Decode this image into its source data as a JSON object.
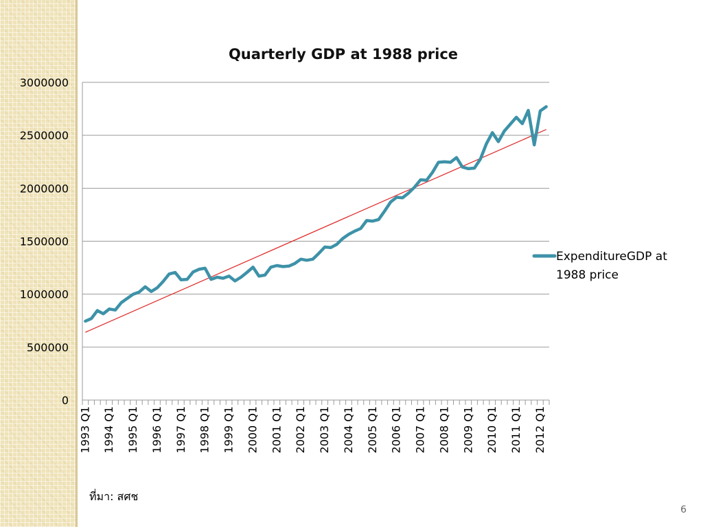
{
  "slide": {
    "source_note": "ที่มา: สศช",
    "page_number": "6"
  },
  "colors": {
    "series": "#3d92a8",
    "trend": "#e03030",
    "grid": "#9a9a9a",
    "strip": "#efe3b9"
  },
  "chart_data": {
    "type": "line",
    "title": "Quarterly  GDP at 1988 price",
    "xlabel": "",
    "ylabel": "",
    "ylim": [
      0,
      3000000
    ],
    "yticks": [
      0,
      500000,
      1000000,
      1500000,
      2000000,
      2500000,
      3000000
    ],
    "ytick_labels": [
      "0",
      "500000",
      "1000000",
      "1500000",
      "2000000",
      "2500000",
      "3000000"
    ],
    "xtick_labels": [
      "1993 Q1",
      "1994 Q1",
      "1995 Q1",
      "1996 Q1",
      "1997 Q1",
      "1998 Q1",
      "1999 Q1",
      "2000 Q1",
      "2001 Q1",
      "2002 Q1",
      "2003 Q1",
      "2004 Q1",
      "2005 Q1",
      "2006 Q1",
      "2007 Q1",
      "2008 Q1",
      "2009 Q1",
      "2010 Q1",
      "2011 Q1",
      "2012 Q1"
    ],
    "grid": true,
    "legend": "right",
    "series": [
      {
        "name": "ExpenditureGDP at 1988 price",
        "values": [
          745000,
          770000,
          845000,
          815000,
          860000,
          850000,
          920000,
          960000,
          1000000,
          1020000,
          1070000,
          1025000,
          1060000,
          1120000,
          1190000,
          1205000,
          1135000,
          1140000,
          1210000,
          1235000,
          1245000,
          1140000,
          1160000,
          1150000,
          1170000,
          1125000,
          1160000,
          1205000,
          1255000,
          1170000,
          1180000,
          1255000,
          1270000,
          1260000,
          1265000,
          1290000,
          1330000,
          1320000,
          1330000,
          1385000,
          1445000,
          1440000,
          1470000,
          1525000,
          1565000,
          1595000,
          1620000,
          1695000,
          1690000,
          1705000,
          1785000,
          1870000,
          1915000,
          1910000,
          1955000,
          2010000,
          2080000,
          2075000,
          2150000,
          2245000,
          2250000,
          2245000,
          2290000,
          2200000,
          2185000,
          2190000,
          2275000,
          2420000,
          2525000,
          2440000,
          2540000,
          2605000,
          2670000,
          2610000,
          2735000,
          2410000,
          2730000,
          2770000
        ]
      },
      {
        "name": "",
        "trendline": true,
        "values": [
          640000,
          2555000
        ]
      }
    ]
  }
}
